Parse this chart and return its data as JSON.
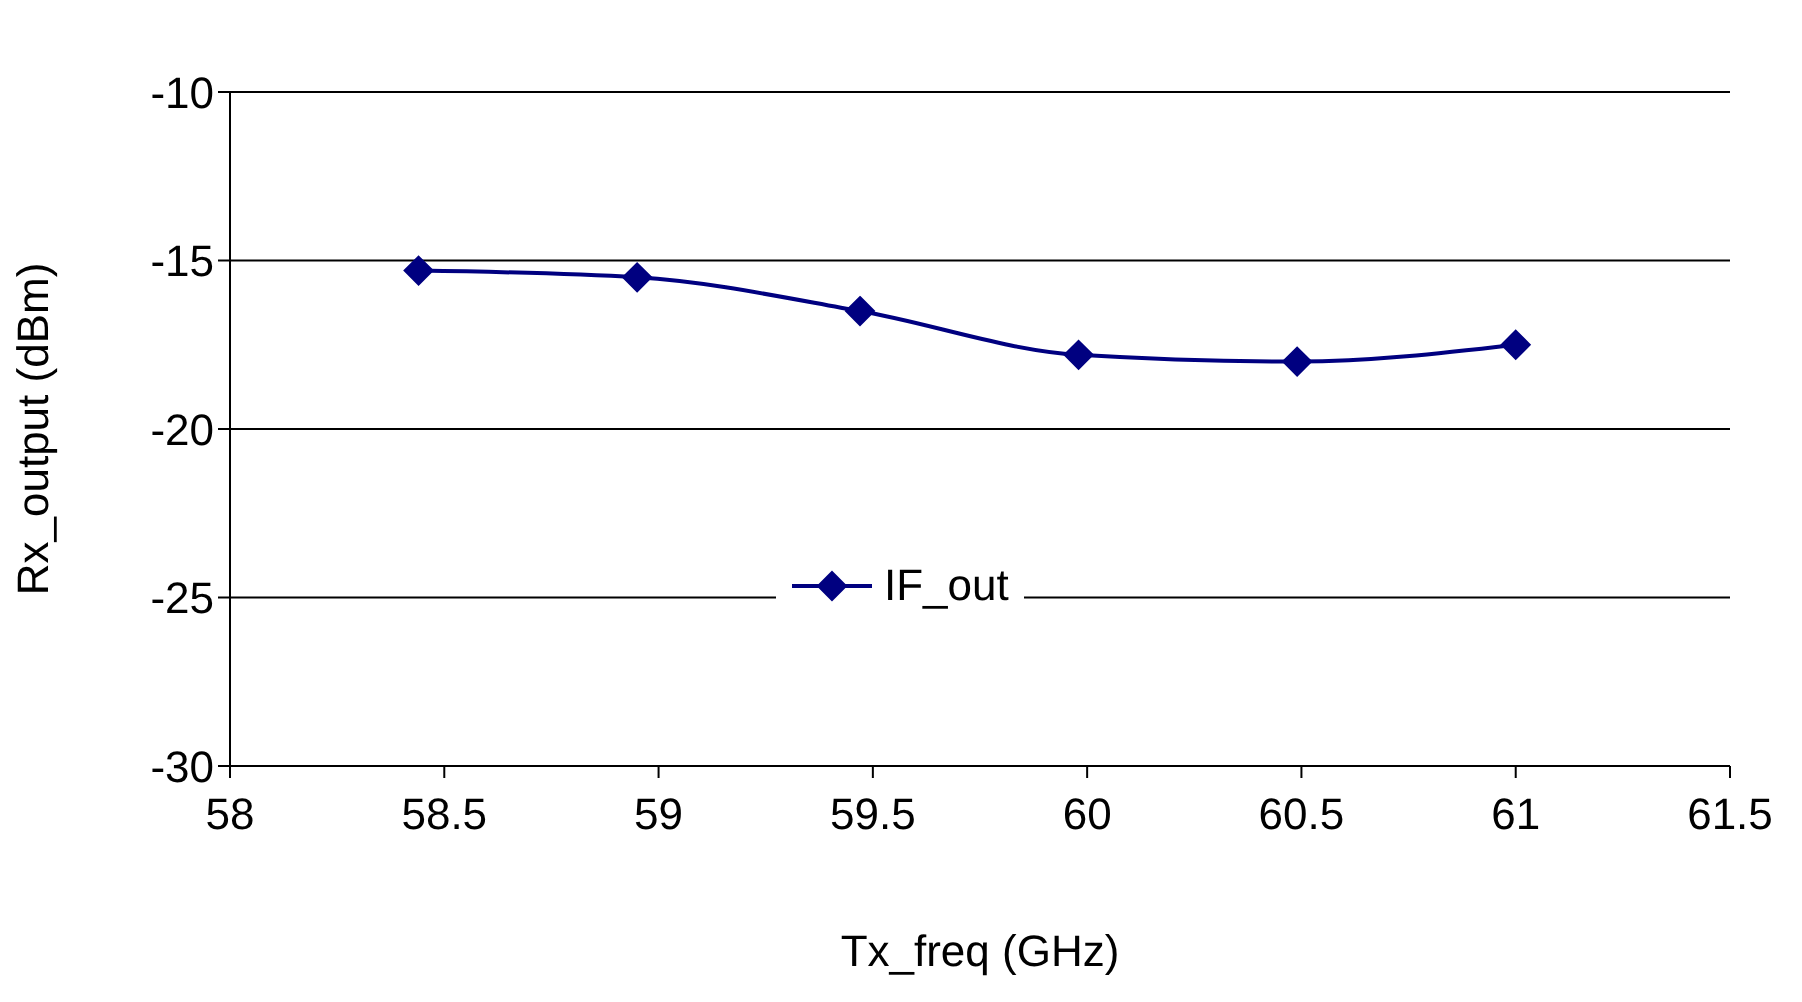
{
  "chart_data": {
    "type": "line",
    "xlabel": "Tx_freq (GHz)",
    "ylabel": "Rx_output (dBm)",
    "x": [
      58.44,
      58.95,
      59.47,
      59.98,
      60.49,
      61.0
    ],
    "series": [
      {
        "name": "IF_out",
        "color": "#000080",
        "values": [
          -15.3,
          -15.5,
          -16.5,
          -17.8,
          -18.0,
          -17.5
        ]
      }
    ],
    "xlim": [
      58,
      61.5
    ],
    "xticks": [
      58,
      58.5,
      59,
      59.5,
      60,
      60.5,
      61,
      61.5
    ],
    "ylim": [
      -30,
      -10
    ],
    "yticks": [
      -30,
      -25,
      -20,
      -15,
      -10
    ],
    "grid": "y",
    "legend": "center",
    "marker": "diamond",
    "line_style": "solid"
  }
}
